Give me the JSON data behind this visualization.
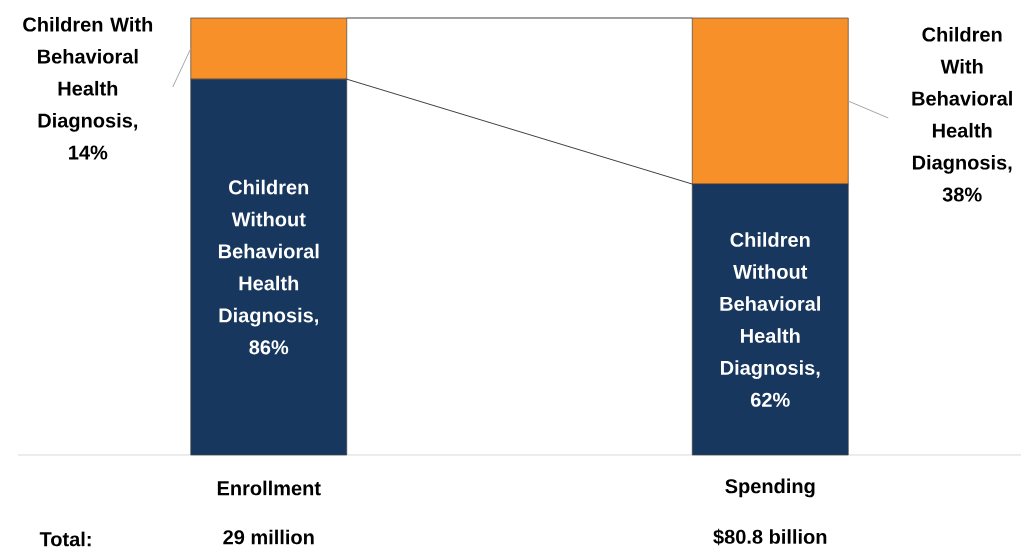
{
  "chart_data": {
    "type": "bar",
    "stacked": true,
    "categories": [
      "Enrollment",
      "Spending"
    ],
    "series": [
      {
        "color": "#17375e",
        "values": [
          86,
          62
        ],
        "value_labels": [
          "Children Without Behavioral Health Diagnosis, 86%",
          "Children Without Behavioral Health Diagnosis, 62%"
        ]
      },
      {
        "color": "#f89029",
        "values": [
          14,
          38
        ],
        "value_labels": [
          "Children With Behavioral Health Diagnosis, 14%",
          "Children With Behavioral Health Diagnosis, 38%"
        ]
      }
    ],
    "annotations": [
      "Total:",
      "29 million",
      "$80.8 billion"
    ]
  }
}
